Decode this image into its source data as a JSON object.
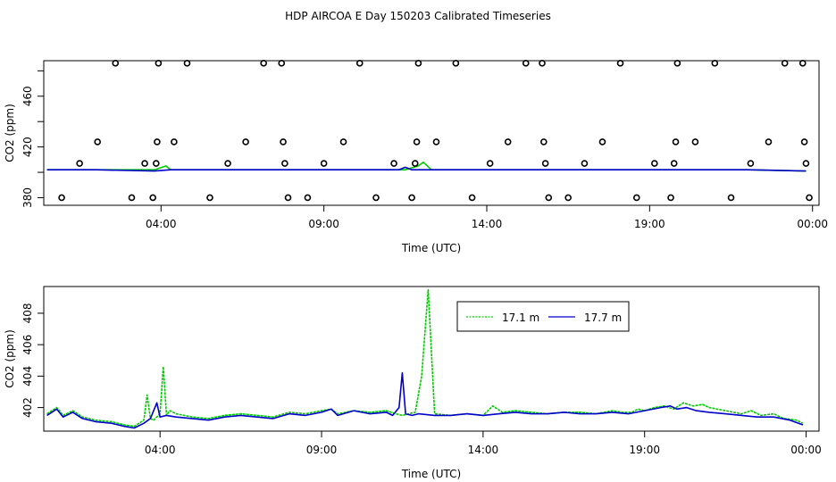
{
  "title": "HDP AIRCOA E  Day 150203  Calibrated Timeseries",
  "chart_data": [
    {
      "type": "line",
      "xlabel": "Time (UTC)",
      "ylabel": "CO2 (ppm)",
      "x_unit": "hours UTC",
      "x_range": [
        0.4,
        24.2
      ],
      "x_ticks": [
        {
          "label": "04:00",
          "x": 4
        },
        {
          "label": "09:00",
          "x": 9
        },
        {
          "label": "14:00",
          "x": 14
        },
        {
          "label": "19:00",
          "x": 19
        },
        {
          "label": "00:00",
          "x": 24
        }
      ],
      "ylim": [
        374,
        488
      ],
      "y_ticks": [
        380,
        420,
        460
      ],
      "series": [
        {
          "name": "17.1 m",
          "color": "#00cc00",
          "x": [
            0.5,
            2,
            3.8,
            4.15,
            4.3,
            6,
            8,
            10,
            11.5,
            11.9,
            12.05,
            12.3,
            14,
            16,
            18,
            20,
            22,
            23.8
          ],
          "y": [
            402,
            402,
            402,
            405,
            402,
            402,
            402,
            402,
            402,
            405,
            408,
            402,
            402,
            402,
            402,
            402,
            402,
            401
          ]
        },
        {
          "name": "17.7 m",
          "color": "#0000cc",
          "x": [
            0.5,
            2,
            3.8,
            4.3,
            6,
            8,
            10,
            11.3,
            11.5,
            11.7,
            14,
            16,
            18,
            20,
            22,
            23.8
          ],
          "y": [
            402,
            402,
            401,
            402,
            402,
            402,
            402,
            402,
            404,
            402,
            402,
            402,
            402,
            402,
            402,
            401
          ]
        }
      ],
      "circle_markers": [
        {
          "x": 0.95,
          "y": 380
        },
        {
          "x": 1.5,
          "y": 407
        },
        {
          "x": 2.05,
          "y": 424
        },
        {
          "x": 2.6,
          "y": 486
        },
        {
          "x": 3.1,
          "y": 380
        },
        {
          "x": 3.5,
          "y": 407
        },
        {
          "x": 3.75,
          "y": 380
        },
        {
          "x": 3.85,
          "y": 407
        },
        {
          "x": 3.88,
          "y": 424
        },
        {
          "x": 3.92,
          "y": 486
        },
        {
          "x": 4.4,
          "y": 424
        },
        {
          "x": 4.8,
          "y": 486
        },
        {
          "x": 5.5,
          "y": 380
        },
        {
          "x": 6.05,
          "y": 407
        },
        {
          "x": 6.6,
          "y": 424
        },
        {
          "x": 7.15,
          "y": 486
        },
        {
          "x": 7.7,
          "y": 486
        },
        {
          "x": 7.75,
          "y": 424
        },
        {
          "x": 7.8,
          "y": 407
        },
        {
          "x": 7.9,
          "y": 380
        },
        {
          "x": 8.5,
          "y": 380
        },
        {
          "x": 9,
          "y": 407
        },
        {
          "x": 9.6,
          "y": 424
        },
        {
          "x": 10.1,
          "y": 486
        },
        {
          "x": 10.6,
          "y": 380
        },
        {
          "x": 11.15,
          "y": 407
        },
        {
          "x": 11.7,
          "y": 380
        },
        {
          "x": 11.8,
          "y": 407
        },
        {
          "x": 11.85,
          "y": 424
        },
        {
          "x": 11.9,
          "y": 486
        },
        {
          "x": 12.45,
          "y": 424
        },
        {
          "x": 13.05,
          "y": 486
        },
        {
          "x": 13.55,
          "y": 380
        },
        {
          "x": 14.1,
          "y": 407
        },
        {
          "x": 14.65,
          "y": 424
        },
        {
          "x": 15.2,
          "y": 486
        },
        {
          "x": 15.7,
          "y": 486
        },
        {
          "x": 15.75,
          "y": 424
        },
        {
          "x": 15.8,
          "y": 407
        },
        {
          "x": 15.9,
          "y": 380
        },
        {
          "x": 16.5,
          "y": 380
        },
        {
          "x": 17,
          "y": 407
        },
        {
          "x": 17.55,
          "y": 424
        },
        {
          "x": 18.1,
          "y": 486
        },
        {
          "x": 18.6,
          "y": 380
        },
        {
          "x": 19.15,
          "y": 407
        },
        {
          "x": 19.65,
          "y": 380
        },
        {
          "x": 19.75,
          "y": 407
        },
        {
          "x": 19.8,
          "y": 424
        },
        {
          "x": 19.85,
          "y": 486
        },
        {
          "x": 20.4,
          "y": 424
        },
        {
          "x": 21,
          "y": 486
        },
        {
          "x": 21.5,
          "y": 380
        },
        {
          "x": 22.1,
          "y": 407
        },
        {
          "x": 22.65,
          "y": 424
        },
        {
          "x": 23.15,
          "y": 486
        },
        {
          "x": 23.7,
          "y": 486
        },
        {
          "x": 23.75,
          "y": 424
        },
        {
          "x": 23.8,
          "y": 407
        },
        {
          "x": 23.9,
          "y": 380
        }
      ]
    },
    {
      "type": "line",
      "xlabel": "Time (UTC)",
      "ylabel": "CO2 (ppm)",
      "x_unit": "hours UTC",
      "x_range": [
        0.4,
        24.4
      ],
      "x_ticks": [
        {
          "label": "04:00",
          "x": 4
        },
        {
          "label": "09:00",
          "x": 9
        },
        {
          "label": "14:00",
          "x": 14
        },
        {
          "label": "19:00",
          "x": 19
        },
        {
          "label": "00:00",
          "x": 24
        }
      ],
      "ylim": [
        400.5,
        409.7
      ],
      "y_ticks": [
        402,
        404,
        406,
        408
      ],
      "legend": "top-right",
      "series": [
        {
          "name": "17.1 m",
          "color": "#00cc00",
          "x": [
            0.5,
            0.8,
            1,
            1.3,
            1.6,
            2,
            2.5,
            2.9,
            3.2,
            3.5,
            3.6,
            3.7,
            3.8,
            4,
            4.1,
            4.2,
            4.3,
            4.5,
            5,
            5.5,
            6,
            6.5,
            7,
            7.5,
            8,
            8.5,
            9,
            9.3,
            9.5,
            10,
            10.5,
            11,
            11.3,
            11.5,
            11.7,
            11.9,
            12.1,
            12.3,
            12.5,
            13,
            13.5,
            14,
            14.3,
            14.6,
            15,
            15.5,
            16,
            16.5,
            17,
            17.5,
            18,
            18.3,
            18.6,
            18.8,
            19,
            19.3,
            19.6,
            19.9,
            20.2,
            20.5,
            20.8,
            21,
            21.5,
            22,
            22.3,
            22.6,
            23,
            23.3,
            23.7,
            23.9
          ],
          "y": [
            401.6,
            402.0,
            401.5,
            401.8,
            401.4,
            401.2,
            401.1,
            400.9,
            400.8,
            401.2,
            402.8,
            401.3,
            401.2,
            401.6,
            404.6,
            401.5,
            401.8,
            401.6,
            401.4,
            401.3,
            401.5,
            401.6,
            401.5,
            401.4,
            401.7,
            401.6,
            401.8,
            401.9,
            401.6,
            401.8,
            401.7,
            401.8,
            401.6,
            401.5,
            401.6,
            401.7,
            404.0,
            409.5,
            401.6,
            401.5,
            401.6,
            401.5,
            402.1,
            401.7,
            401.8,
            401.7,
            401.6,
            401.7,
            401.7,
            401.6,
            401.8,
            401.7,
            401.7,
            401.9,
            401.8,
            402.0,
            402.1,
            401.9,
            402.3,
            402.1,
            402.2,
            402.0,
            401.8,
            401.6,
            401.8,
            401.5,
            401.6,
            401.3,
            401.2,
            401.0
          ]
        },
        {
          "name": "17.7 m",
          "color": "#0000cc",
          "x": [
            0.5,
            0.8,
            1,
            1.3,
            1.6,
            2,
            2.5,
            2.9,
            3.2,
            3.5,
            3.7,
            3.9,
            4,
            4.2,
            4.5,
            5,
            5.5,
            6,
            6.5,
            7,
            7.5,
            8,
            8.5,
            9,
            9.3,
            9.5,
            10,
            10.5,
            11,
            11.2,
            11.4,
            11.5,
            11.6,
            11.8,
            12,
            12.5,
            13,
            13.5,
            14,
            14.5,
            15,
            15.5,
            16,
            16.5,
            17,
            17.5,
            18,
            18.5,
            19,
            19.5,
            19.8,
            20,
            20.3,
            20.6,
            21,
            21.5,
            22,
            22.5,
            23,
            23.5,
            23.9
          ],
          "y": [
            401.5,
            401.9,
            401.4,
            401.7,
            401.3,
            401.1,
            401.0,
            400.8,
            400.7,
            401.0,
            401.3,
            402.3,
            401.4,
            401.5,
            401.4,
            401.3,
            401.2,
            401.4,
            401.5,
            401.4,
            401.3,
            401.6,
            401.5,
            401.7,
            401.9,
            401.5,
            401.8,
            401.6,
            401.7,
            401.5,
            402.0,
            404.2,
            401.6,
            401.5,
            401.6,
            401.5,
            401.5,
            401.6,
            401.5,
            401.6,
            401.7,
            401.6,
            401.6,
            401.7,
            401.6,
            401.6,
            401.7,
            401.6,
            401.8,
            402.0,
            402.1,
            401.9,
            402.0,
            401.8,
            401.7,
            401.6,
            401.5,
            401.4,
            401.4,
            401.2,
            400.9
          ]
        }
      ]
    }
  ]
}
